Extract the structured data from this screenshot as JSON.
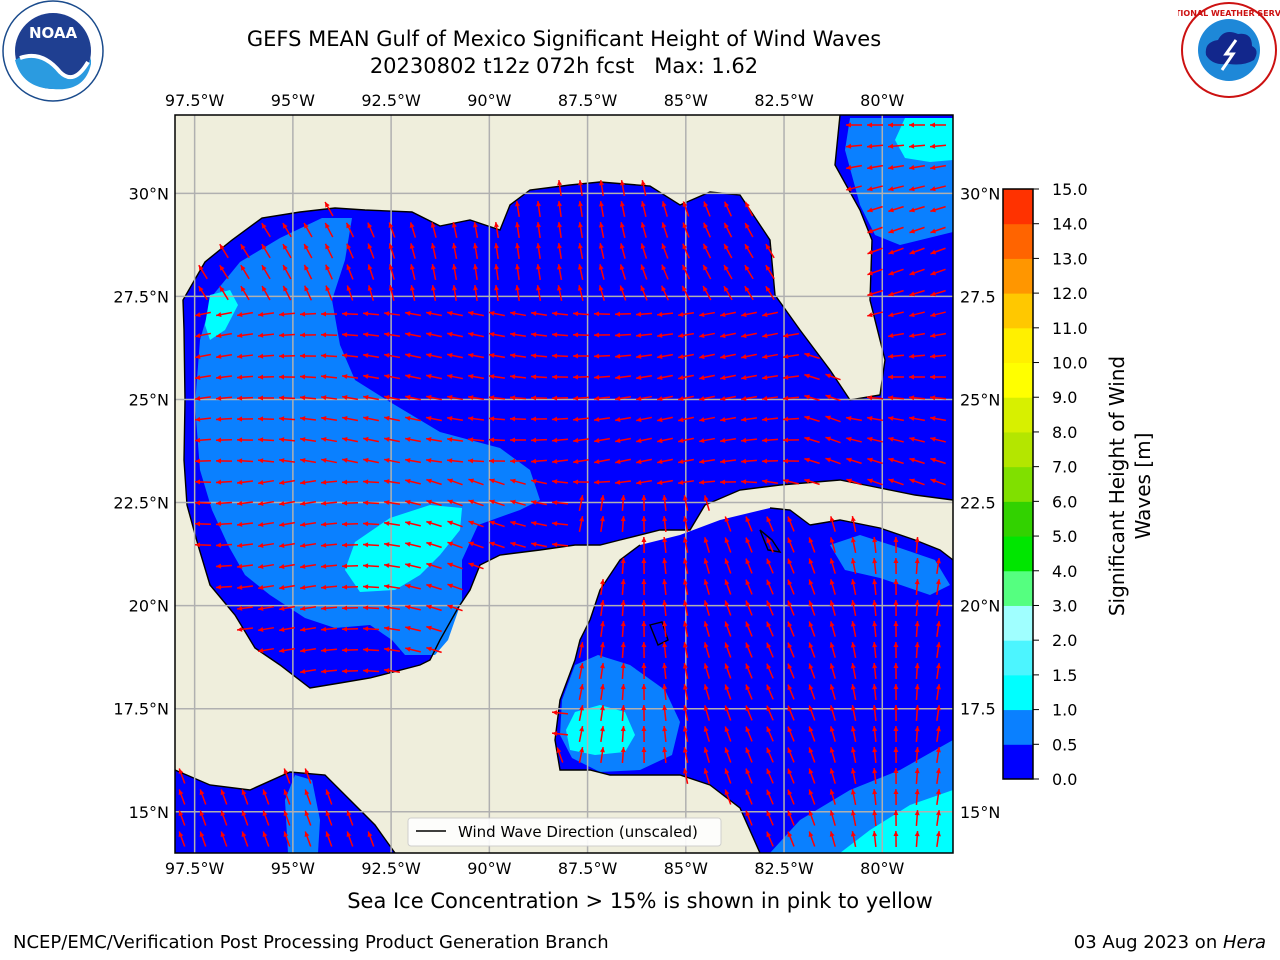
{
  "title": {
    "line1": "GEFS MEAN Gulf of Mexico Significant Height of Wind Waves",
    "line2": "20230802 t12z 072h fcst   Max: 1.62"
  },
  "logos": {
    "left": {
      "icon": "noaa-logo",
      "text": "NOAA"
    },
    "right": {
      "icon": "nws-logo",
      "text": "NATIONAL WEATHER SERVICE"
    }
  },
  "map": {
    "lon_range": [
      -98,
      -78.2
    ],
    "lat_range": [
      14,
      31.9
    ],
    "lon_ticks": [
      "97.5°W",
      "95°W",
      "92.5°W",
      "90°W",
      "87.5°W",
      "85°W",
      "82.5°W",
      "80°W"
    ],
    "lat_ticks": [
      "30°N",
      "27.5°N",
      "25°N",
      "22.5°N",
      "20°N",
      "17.5°N",
      "15°N"
    ],
    "lat_ticks_right": [
      "30°N",
      "27.5",
      "25°N",
      "22.5",
      "20°N",
      "17.5",
      "15°N"
    ],
    "legend_label": "Wind Wave Direction (unscaled)",
    "land_color": "#efeedc",
    "arrow_color": "#ff0000",
    "grid": true
  },
  "colorbar": {
    "label_line1": "Significant Height of Wind",
    "label_line2": "Waves [m]",
    "ticks": [
      "0.0",
      "0.5",
      "1.0",
      "1.5",
      "2.0",
      "3.0",
      "4.0",
      "5.0",
      "6.0",
      "7.0",
      "8.0",
      "9.0",
      "10.0",
      "11.0",
      "12.0",
      "13.0",
      "14.0",
      "15.0"
    ],
    "colors": [
      "#0000ff",
      "#0a80ff",
      "#00ffff",
      "#4cf5ff",
      "#a0ffff",
      "#55ff80",
      "#00e600",
      "#32d200",
      "#80e000",
      "#b4e600",
      "#d7f000",
      "#ffff00",
      "#fff000",
      "#ffc800",
      "#ff9600",
      "#ff6400",
      "#ff3200",
      "#ff0000"
    ]
  },
  "chart_data": {
    "type": "heatmap",
    "max": 1.62,
    "units": "m",
    "forecast_date": "20230802",
    "cycle": "t12z",
    "lead": "072h fcst"
  },
  "note": "Sea Ice Concentration > 15% is shown in pink to yellow",
  "footer": {
    "left": "NCEP/EMC/Verification Post Processing Product Generation Branch",
    "date": "03 Aug 2023 on ",
    "machine": "Hera"
  }
}
